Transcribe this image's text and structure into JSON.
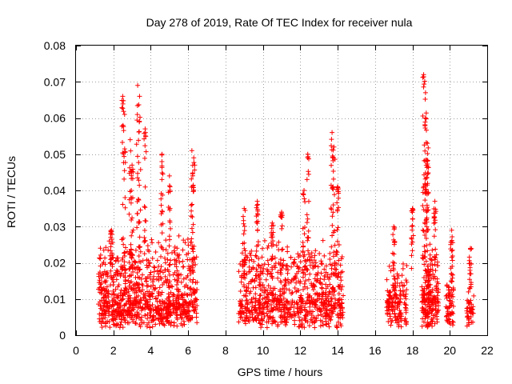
{
  "chart_data": {
    "type": "scatter",
    "title": "Day 278 of 2019, Rate Of TEC Index for receiver nula",
    "xlabel": "GPS time / hours",
    "ylabel": "ROTI / TECUs",
    "xlim": [
      0,
      22
    ],
    "ylim": [
      0,
      0.08
    ],
    "xticks": [
      "0",
      "2",
      "4",
      "6",
      "8",
      "10",
      "12",
      "14",
      "16",
      "18",
      "20",
      "22"
    ],
    "yticks": [
      "0",
      "0.01",
      "0.02",
      "0.03",
      "0.04",
      "0.05",
      "0.06",
      "0.07",
      "0.08"
    ],
    "grid": true,
    "marker": "+",
    "color": "#ff0000",
    "clusters": [
      {
        "start": 1.2,
        "end": 6.5,
        "base": 0.007,
        "spread": 0.012,
        "density": 900
      },
      {
        "start": 8.7,
        "end": 14.3,
        "base": 0.007,
        "spread": 0.011,
        "density": 800
      },
      {
        "start": 16.6,
        "end": 17.7,
        "base": 0.007,
        "spread": 0.008,
        "density": 150
      },
      {
        "start": 18.5,
        "end": 19.4,
        "base": 0.008,
        "spread": 0.01,
        "density": 200
      },
      {
        "start": 19.8,
        "end": 20.2,
        "base": 0.007,
        "spread": 0.006,
        "density": 60
      },
      {
        "start": 20.9,
        "end": 21.3,
        "base": 0.006,
        "spread": 0.004,
        "density": 40
      }
    ],
    "peaks": [
      {
        "x": 1.9,
        "y": 0.029
      },
      {
        "x": 2.5,
        "y": 0.066
      },
      {
        "x": 2.6,
        "y": 0.061
      },
      {
        "x": 2.9,
        "y": 0.054
      },
      {
        "x": 3.0,
        "y": 0.047
      },
      {
        "x": 3.3,
        "y": 0.069
      },
      {
        "x": 3.4,
        "y": 0.066
      },
      {
        "x": 3.7,
        "y": 0.057
      },
      {
        "x": 4.6,
        "y": 0.05
      },
      {
        "x": 5.0,
        "y": 0.044
      },
      {
        "x": 6.2,
        "y": 0.051
      },
      {
        "x": 6.3,
        "y": 0.049
      },
      {
        "x": 9.0,
        "y": 0.035
      },
      {
        "x": 9.7,
        "y": 0.037
      },
      {
        "x": 10.5,
        "y": 0.031
      },
      {
        "x": 11.0,
        "y": 0.034
      },
      {
        "x": 12.2,
        "y": 0.04
      },
      {
        "x": 12.4,
        "y": 0.05
      },
      {
        "x": 13.7,
        "y": 0.056
      },
      {
        "x": 13.8,
        "y": 0.052
      },
      {
        "x": 14.0,
        "y": 0.041
      },
      {
        "x": 17.0,
        "y": 0.03
      },
      {
        "x": 18.0,
        "y": 0.035
      },
      {
        "x": 18.6,
        "y": 0.072
      },
      {
        "x": 18.7,
        "y": 0.067
      },
      {
        "x": 18.7,
        "y": 0.06
      },
      {
        "x": 18.8,
        "y": 0.053
      },
      {
        "x": 18.8,
        "y": 0.048
      },
      {
        "x": 19.2,
        "y": 0.037
      },
      {
        "x": 20.1,
        "y": 0.029
      },
      {
        "x": 21.1,
        "y": 0.024
      }
    ]
  }
}
